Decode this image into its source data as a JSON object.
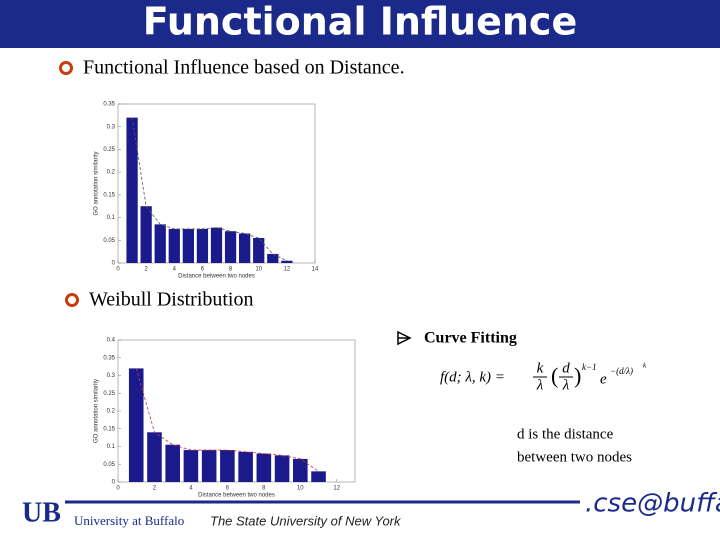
{
  "header": {
    "title": "Functional Influence"
  },
  "bullets": [
    "Functional Influence based on Distance.",
    "Weibull Distribution"
  ],
  "charts": [
    {
      "type": "bar",
      "x_label": "Distance between two nodes",
      "y_label": "GO annotation similarity",
      "x": [
        1,
        2,
        3,
        4,
        5,
        6,
        7,
        8,
        9,
        10,
        11,
        12
      ],
      "values": [
        0.32,
        0.125,
        0.085,
        0.075,
        0.075,
        0.075,
        0.078,
        0.07,
        0.065,
        0.055,
        0.02,
        0.005
      ],
      "xlim": [
        0,
        14
      ],
      "ylim": [
        0,
        0.35
      ],
      "xticks": [
        0,
        2,
        4,
        6,
        8,
        10,
        12,
        14
      ],
      "yticks": [
        0,
        0.05,
        0.1,
        0.15,
        0.2,
        0.25,
        0.3,
        0.35
      ],
      "color": "#1a1a8c",
      "line_color": "#555555"
    },
    {
      "type": "bar",
      "x_label": "Distance between two nodes",
      "y_label": "GO annotation similarity",
      "x": [
        1,
        2,
        3,
        4,
        5,
        6,
        7,
        8,
        9,
        10,
        11
      ],
      "values": [
        0.32,
        0.14,
        0.105,
        0.09,
        0.09,
        0.09,
        0.085,
        0.08,
        0.075,
        0.065,
        0.03
      ],
      "xlim": [
        0,
        13
      ],
      "ylim": [
        0,
        0.4
      ],
      "xticks": [
        0,
        2,
        4,
        6,
        8,
        10,
        12
      ],
      "yticks": [
        0,
        0.05,
        0.1,
        0.15,
        0.2,
        0.25,
        0.3,
        0.35,
        0.4
      ],
      "color": "#1a1a8c",
      "line_color": "#cc3333"
    }
  ],
  "curve_fitting": {
    "label": "Curve Fitting",
    "formula": {
      "lhs": "f(d; λ, k) =",
      "k": "k",
      "lambda": "λ",
      "d": "d",
      "exp_base": "e",
      "power": "k−1",
      "exponent": "−(d/λ)",
      "exp_power": "k"
    }
  },
  "note": [
    "d is the distance",
    "between two nodes"
  ],
  "footer": {
    "university": "University at Buffalo",
    "subtitle": "The State University of New York",
    "logo": ".cse@buffalo"
  }
}
